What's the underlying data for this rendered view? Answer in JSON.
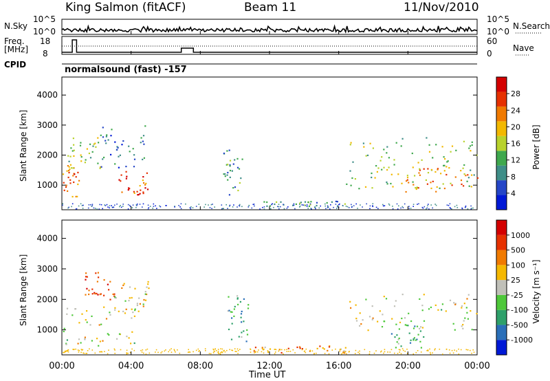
{
  "header": {
    "station": "King Salmon (fitACF)",
    "beam": "Beam 11",
    "date": "11/Nov/2010"
  },
  "status_panels": {
    "left_labels": {
      "nsky": "N.Sky",
      "freq": "Freq.",
      "freq_unit": "[MHz]",
      "cpid": "CPID"
    },
    "right_labels": {
      "nsearch": "N.Search",
      "nave": "Nave"
    },
    "noise_ticks_left": [
      "10^5",
      "10^0"
    ],
    "noise_ticks_right": [
      "10^5",
      "10^0"
    ],
    "freq_ticks": [
      "18",
      "8"
    ],
    "nave_ticks": [
      "60",
      "0"
    ],
    "cpid_text": "normalsound (fast) -157"
  },
  "chart_data": [
    {
      "type": "heatmap",
      "panel": "power",
      "ylabel": "Slant Range [km]",
      "y_ticks": [
        "1000",
        "2000",
        "3000",
        "4000"
      ],
      "ylim": [
        180,
        4600
      ],
      "colorbar_label": "Power [dB]",
      "colorbar_ticks": [
        "4",
        "8",
        "12",
        "16",
        "20",
        "24",
        "28"
      ],
      "colorbar_colors": [
        "#0019d6",
        "#2546c7",
        "#3f8e88",
        "#3fa84d",
        "#b8d22c",
        "#f2b800",
        "#f07a00",
        "#e63100",
        "#d40000"
      ],
      "scatter_regions": [
        {
          "t0": 0.0,
          "t1": 1.0,
          "r0": 600,
          "r1": 1700,
          "level": 0.75
        },
        {
          "t0": 0.3,
          "t1": 2.2,
          "r0": 1500,
          "r1": 2800,
          "level": 0.45
        },
        {
          "t0": 2.2,
          "t1": 4.8,
          "r0": 1600,
          "r1": 3000,
          "level": 0.25
        },
        {
          "t0": 3.2,
          "t1": 5.0,
          "r0": 700,
          "r1": 1500,
          "level": 0.8
        },
        {
          "t0": 9.3,
          "t1": 10.4,
          "r0": 600,
          "r1": 2200,
          "level": 0.3
        },
        {
          "t0": 11.0,
          "t1": 16.5,
          "r0": 250,
          "r1": 500,
          "level": 0.35
        },
        {
          "t0": 16.4,
          "t1": 24.0,
          "r0": 900,
          "r1": 2600,
          "level": 0.45
        },
        {
          "t0": 19.5,
          "t1": 24.0,
          "r0": 800,
          "r1": 1600,
          "level": 0.7
        }
      ]
    },
    {
      "type": "heatmap",
      "panel": "velocity",
      "ylabel": "Slant Range [km]",
      "y_ticks": [
        "1000",
        "2000",
        "3000",
        "4000"
      ],
      "ylim": [
        180,
        4600
      ],
      "colorbar_label": "Velocity [m s⁻¹]",
      "colorbar_ticks": [
        "1000",
        "500",
        "100",
        "25",
        "-25",
        "-100",
        "-500",
        "-1000"
      ],
      "colorbar_colors": [
        "#0019d6",
        "#2a6fb8",
        "#2ea06a",
        "#4ec83a",
        "#c0c0b8",
        "#f5b800",
        "#f07a00",
        "#e63100",
        "#d40000"
      ],
      "scatter_regions": [
        {
          "t0": 0.0,
          "t1": 4.5,
          "r0": 500,
          "r1": 1800,
          "level": 0.5
        },
        {
          "t0": 1.3,
          "t1": 3.0,
          "r0": 2000,
          "r1": 2900,
          "level": 0.85
        },
        {
          "t0": 3.0,
          "t1": 5.0,
          "r0": 1600,
          "r1": 2600,
          "level": 0.55
        },
        {
          "t0": 9.5,
          "t1": 10.8,
          "r0": 600,
          "r1": 2200,
          "level": 0.3
        },
        {
          "t0": 11.0,
          "t1": 16.5,
          "r0": 250,
          "r1": 500,
          "level": 0.7
        },
        {
          "t0": 16.5,
          "t1": 24.0,
          "r0": 1000,
          "r1": 2200,
          "level": 0.5
        },
        {
          "t0": 19.0,
          "t1": 21.0,
          "r0": 400,
          "r1": 1200,
          "level": 0.35
        }
      ]
    }
  ],
  "time_axis": {
    "xlabel": "Time UT",
    "ticks": [
      "00:00",
      "04:00",
      "08:00",
      "12:00",
      "16:00",
      "20:00",
      "00:00"
    ]
  }
}
